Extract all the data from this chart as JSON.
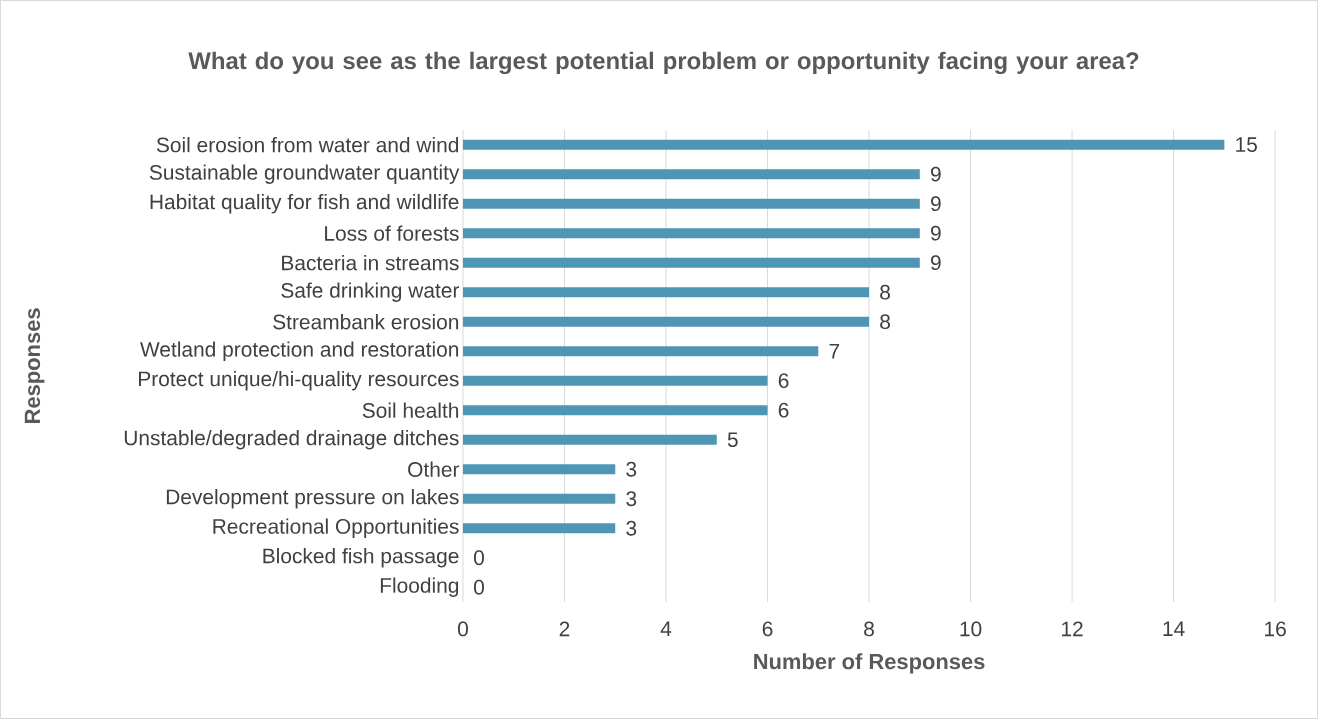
{
  "chart_data": {
    "type": "bar",
    "orientation": "horizontal",
    "title": "What do you see as the largest potential problem or opportunity facing your area?",
    "xlabel": "Number of Responses",
    "ylabel": "Responses",
    "categories": [
      "Soil erosion from water and wind",
      "Sustainable groundwater quantity",
      "Habitat quality for fish and wildlife",
      "Loss of forests",
      "Bacteria in streams",
      "Safe drinking water",
      "Streambank erosion",
      "Wetland protection and restoration",
      "Protect unique/hi-quality resources",
      "Soil health",
      "Unstable/degraded drainage ditches",
      "Other",
      "Development pressure on lakes",
      "Recreational Opportunities",
      "Blocked fish passage",
      "Flooding"
    ],
    "values": [
      15,
      9,
      9,
      9,
      9,
      8,
      8,
      7,
      6,
      6,
      5,
      3,
      3,
      3,
      0,
      0
    ],
    "color": "#4f96b4",
    "xlim": [
      0,
      16
    ],
    "xticks": [
      0,
      2,
      4,
      6,
      8,
      10,
      12,
      14,
      16
    ],
    "grid": "x",
    "data_labels": true
  }
}
